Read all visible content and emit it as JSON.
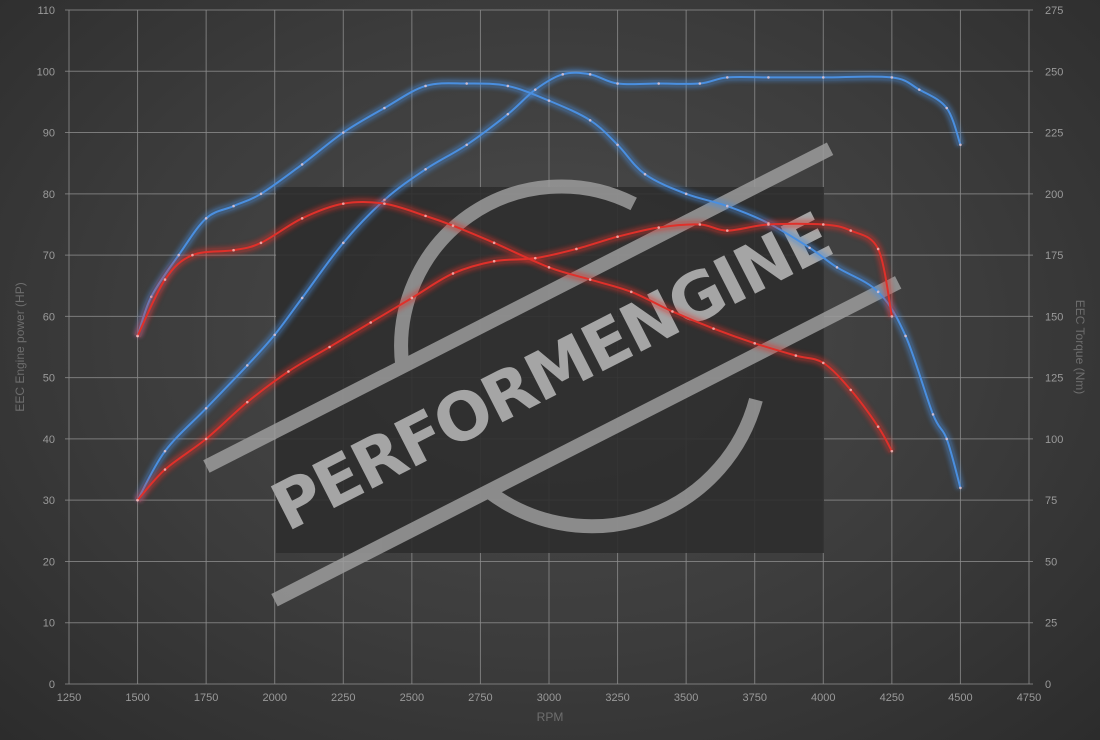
{
  "chart_data": {
    "type": "line",
    "title": "",
    "xlabel": "RPM",
    "ylabel_left": "EEC Engine power (HP)",
    "ylabel_right": "EEC Torque (Nm)",
    "xlim": [
      1250,
      4750
    ],
    "ylim_left": [
      0,
      110
    ],
    "ylim_right": [
      0,
      275
    ],
    "x_ticks": [
      "1250",
      "1500",
      "1750",
      "2000",
      "2250",
      "2500",
      "2750",
      "3000",
      "3250",
      "3500",
      "3750",
      "4000",
      "4250",
      "4500",
      "4750"
    ],
    "y_ticks_left": [
      "0",
      "10",
      "20",
      "30",
      "40",
      "50",
      "60",
      "70",
      "80",
      "90",
      "100",
      "110"
    ],
    "y_ticks_right": [
      "0",
      "25",
      "50",
      "75",
      "100",
      "125",
      "150",
      "175",
      "200",
      "225",
      "250",
      "275"
    ],
    "grid": true,
    "watermark": "PERFORMENGINE",
    "series": [
      {
        "axis": "right",
        "color": "#4a8fe0",
        "x": [
          1500,
          1550,
          1650,
          1750,
          1850,
          1950,
          2100,
          2250,
          2400,
          2550,
          2700,
          2850,
          3000,
          3150,
          3250,
          3350,
          3500,
          3650,
          3800,
          3950,
          4050,
          4200,
          4300,
          4400,
          4450,
          4500
        ],
        "y": [
          142,
          158,
          175,
          190,
          195,
          200,
          212,
          225,
          235,
          244,
          245,
          244,
          238,
          230,
          220,
          208,
          200,
          195,
          188,
          178,
          170,
          160,
          142,
          110,
          100,
          80
        ]
      },
      {
        "axis": "left",
        "color": "#4a8fe0",
        "x": [
          1500,
          1600,
          1750,
          1900,
          2000,
          2100,
          2250,
          2400,
          2550,
          2700,
          2850,
          2950,
          3050,
          3150,
          3250,
          3400,
          3550,
          3650,
          3800,
          4000,
          4250,
          4350,
          4450,
          4500
        ],
        "y": [
          30,
          38,
          45,
          52,
          57,
          63,
          72,
          79,
          84,
          88,
          93,
          97,
          99.5,
          99.5,
          98,
          98,
          98,
          99,
          99,
          99,
          99,
          97,
          94,
          88
        ]
      },
      {
        "axis": "right",
        "color": "#e0302a",
        "x": [
          1500,
          1600,
          1700,
          1850,
          1950,
          2100,
          2250,
          2400,
          2550,
          2650,
          2800,
          3000,
          3150,
          3300,
          3450,
          3600,
          3750,
          3900,
          4000,
          4100,
          4200,
          4250
        ],
        "y": [
          142,
          165,
          175,
          177,
          180,
          190,
          196,
          196,
          191,
          187,
          180,
          170,
          165,
          160,
          152,
          145,
          139,
          134,
          131,
          120,
          105,
          95
        ]
      },
      {
        "axis": "left",
        "color": "#e0302a",
        "x": [
          1500,
          1600,
          1750,
          1900,
          2050,
          2200,
          2350,
          2500,
          2650,
          2800,
          2950,
          3100,
          3250,
          3400,
          3550,
          3650,
          3800,
          4000,
          4100,
          4200,
          4250
        ],
        "y": [
          30,
          35,
          40,
          46,
          51,
          55,
          59,
          63,
          67,
          69,
          69.5,
          71,
          73,
          74.5,
          75,
          74,
          75,
          75,
          74,
          71,
          60
        ]
      }
    ]
  }
}
